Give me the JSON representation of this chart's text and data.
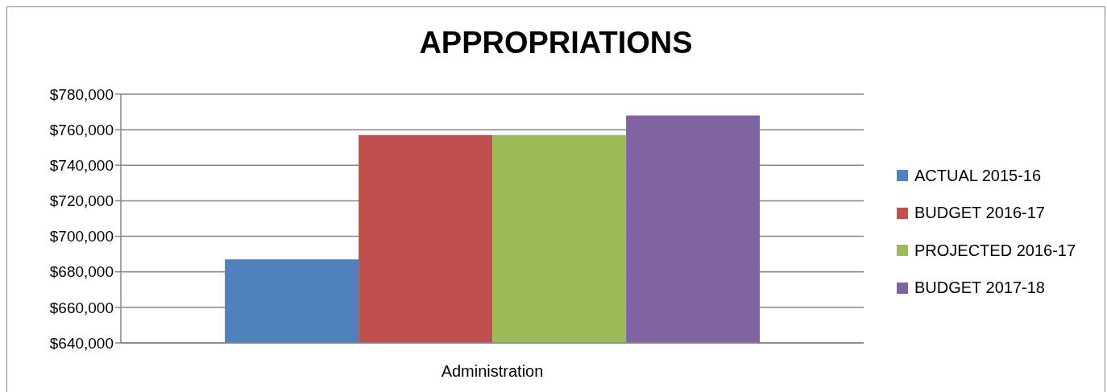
{
  "chart_data": {
    "type": "bar",
    "title": "APPROPRIATIONS",
    "categories": [
      "Administration"
    ],
    "series": [
      {
        "name": "ACTUAL 2015-16",
        "color": "#4f81bd",
        "values": [
          687000
        ]
      },
      {
        "name": "BUDGET 2016-17",
        "color": "#c0504d",
        "values": [
          757000
        ]
      },
      {
        "name": "PROJECTED 2016-17",
        "color": "#9bbb59",
        "values": [
          757000
        ]
      },
      {
        "name": "BUDGET 2017-18",
        "color": "#8064a2",
        "values": [
          768000
        ]
      }
    ],
    "ylim": [
      640000,
      780000
    ],
    "yticks": [
      {
        "value": 640000,
        "label": "$640,000"
      },
      {
        "value": 660000,
        "label": "$660,000"
      },
      {
        "value": 680000,
        "label": "$680,000"
      },
      {
        "value": 700000,
        "label": "$700,000"
      },
      {
        "value": 720000,
        "label": "$720,000"
      },
      {
        "value": 740000,
        "label": "$740,000"
      },
      {
        "value": 760000,
        "label": "$760,000"
      },
      {
        "value": 780000,
        "label": "$780,000"
      }
    ],
    "grid": "y",
    "legend": "right"
  }
}
